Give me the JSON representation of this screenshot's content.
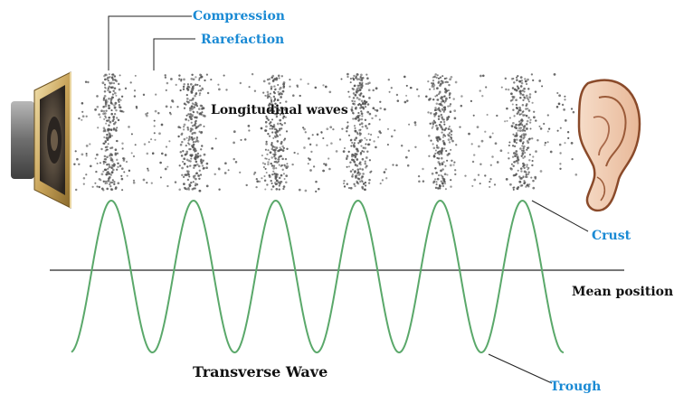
{
  "labels": {
    "compression": "Compression",
    "rarefaction": "Rarefaction",
    "longitudinal": "Longitudinal waves",
    "crust": "Crust",
    "mean_position": "Mean position",
    "trough": "Trough",
    "transverse": "Transverse Wave"
  },
  "colors": {
    "label_blue": "#1a8ad4",
    "wave_green": "#5aa86a",
    "axis_gray": "#777777",
    "particle": "#555555",
    "leader_line": "#222222"
  },
  "icons": {
    "source": "speaker-icon",
    "receiver": "ear-icon"
  }
}
